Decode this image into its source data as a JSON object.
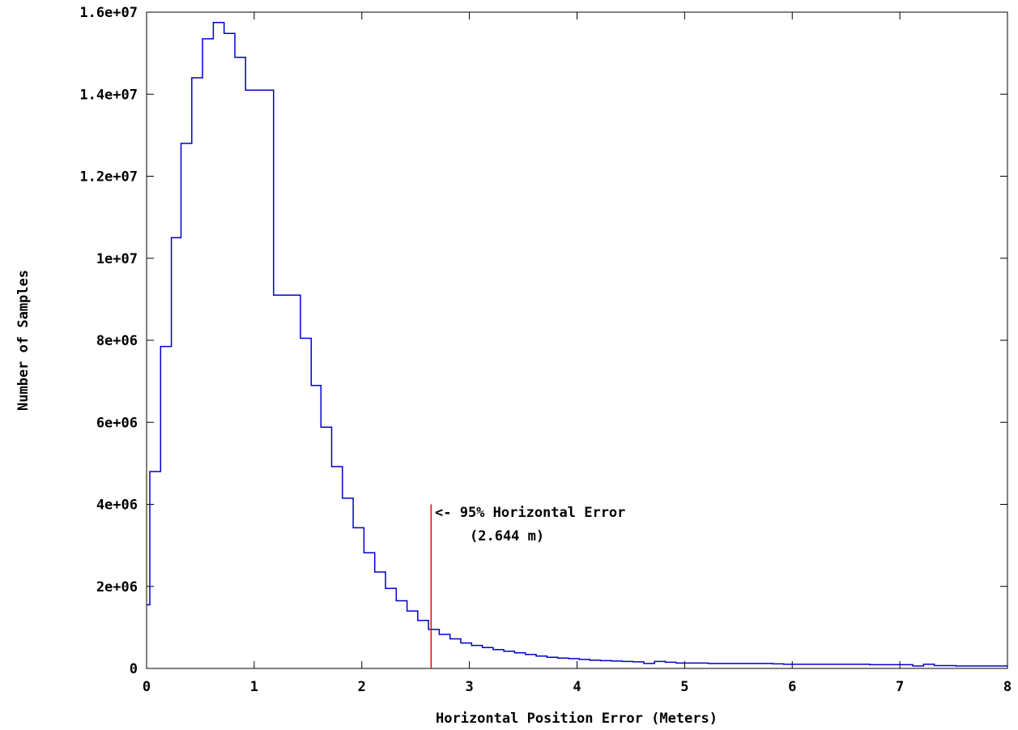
{
  "chart_data": {
    "type": "histogram",
    "title": "",
    "xlabel": "Horizontal Position Error (Meters)",
    "ylabel": "Number of Samples",
    "xlim": [
      0,
      8
    ],
    "ylim": [
      0,
      16000000
    ],
    "x_ticks": [
      {
        "value": 0,
        "label": "0"
      },
      {
        "value": 1,
        "label": "1"
      },
      {
        "value": 2,
        "label": "2"
      },
      {
        "value": 3,
        "label": "3"
      },
      {
        "value": 4,
        "label": "4"
      },
      {
        "value": 5,
        "label": "5"
      },
      {
        "value": 6,
        "label": "6"
      },
      {
        "value": 7,
        "label": "7"
      },
      {
        "value": 8,
        "label": "8"
      }
    ],
    "y_ticks": [
      {
        "value": 0,
        "label": "0"
      },
      {
        "value": 2000000,
        "label": "2e+06"
      },
      {
        "value": 4000000,
        "label": "4e+06"
      },
      {
        "value": 6000000,
        "label": "6e+06"
      },
      {
        "value": 8000000,
        "label": "8e+06"
      },
      {
        "value": 10000000,
        "label": "1e+07"
      },
      {
        "value": 12000000,
        "label": "1.2e+07"
      },
      {
        "value": 14000000,
        "label": "1.4e+07"
      },
      {
        "value": 16000000,
        "label": "1.6e+07"
      }
    ],
    "grid": false,
    "series_color": "#0000cc",
    "step_x": [
      0,
      0.03,
      0.13,
      0.23,
      0.32,
      0.42,
      0.52,
      0.62,
      0.72,
      0.82,
      0.92,
      1.18,
      1.43,
      1.53,
      1.62,
      1.72,
      1.82,
      1.92,
      2.02,
      2.12,
      2.22,
      2.32,
      2.42,
      2.52,
      2.62,
      2.72,
      2.82,
      2.92,
      3.02,
      3.12,
      3.22,
      3.32,
      3.42,
      3.52,
      3.62,
      3.72,
      3.82,
      3.92,
      4.02,
      4.12,
      4.22,
      4.32,
      4.42,
      4.52,
      4.62,
      4.72,
      4.82,
      4.92,
      5.02,
      5.12,
      5.22,
      5.32,
      5.42,
      5.52,
      5.62,
      5.72,
      5.82,
      5.92,
      6.02,
      6.12,
      6.22,
      6.32,
      6.42,
      6.52,
      6.62,
      6.72,
      6.82,
      6.92,
      7.02,
      7.12,
      7.22,
      7.32,
      7.42,
      7.52,
      7.62,
      7.72,
      7.82,
      7.92,
      8.0
    ],
    "step_y": [
      1550000,
      4800000,
      7850000,
      10500000,
      12800000,
      14400000,
      15350000,
      15750000,
      15480000,
      14900000,
      14100000,
      9100000,
      8050000,
      6900000,
      5880000,
      4920000,
      4150000,
      3430000,
      2820000,
      2350000,
      1950000,
      1650000,
      1400000,
      1170000,
      950000,
      830000,
      720000,
      620000,
      560000,
      510000,
      460000,
      420000,
      380000,
      340000,
      300000,
      270000,
      250000,
      240000,
      220000,
      200000,
      190000,
      180000,
      170000,
      160000,
      120000,
      170000,
      150000,
      130000,
      130000,
      130000,
      120000,
      120000,
      120000,
      120000,
      120000,
      120000,
      110000,
      100000,
      100000,
      100000,
      100000,
      100000,
      100000,
      100000,
      100000,
      90000,
      90000,
      90000,
      90000,
      60000,
      100000,
      70000,
      70000,
      60000,
      60000,
      60000,
      60000,
      60000,
      60000
    ],
    "marker": {
      "x": 2.644,
      "y_top": 4000000,
      "color": "#ff0000",
      "label_line1": "<- 95% Horizontal Error",
      "label_line2": "(2.644 m)"
    }
  }
}
